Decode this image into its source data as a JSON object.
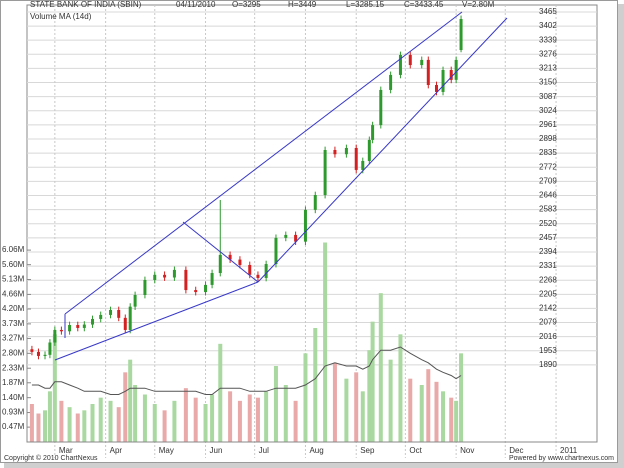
{
  "chart_data": {
    "type": "candlestick",
    "title": "STATE BANK OF INDIA (SBIN)",
    "header": [
      "04/11/2010",
      "O=3295",
      "H=3449",
      "L=3285.15",
      "C=3433.45",
      "V=2.80M"
    ],
    "volume_label": "Volume MA (14d)",
    "footer_left": "Copyright © 2010 ChartNexus",
    "footer_right": "Powered by www.chartnexus.com",
    "x": [
      46,
      50,
      54,
      57,
      60,
      64,
      69,
      74,
      78,
      83,
      88,
      94,
      99,
      103,
      106,
      109,
      115,
      121,
      127,
      133,
      140,
      146,
      152,
      156,
      161,
      167,
      173,
      179,
      184,
      189,
      195,
      201,
      207,
      213,
      219,
      225,
      231,
      238,
      244,
      248,
      252,
      254,
      259,
      265,
      271,
      277,
      284,
      288,
      293,
      297,
      302,
      305,
      308
    ],
    "open": [
      1960,
      1948,
      1930,
      1935,
      1990,
      2046,
      2040,
      2068,
      2055,
      2070,
      2095,
      2113,
      2135,
      2100,
      2046,
      2150,
      2202,
      2269,
      2292,
      2280,
      2314,
      2224,
      2215,
      2247,
      2300,
      2381,
      2360,
      2336,
      2292,
      2278,
      2340,
      2457,
      2470,
      2440,
      2582,
      2648,
      2849,
      2830,
      2858,
      2760,
      2800,
      2894,
      2960,
      3117,
      3184,
      3273,
      3228,
      3251,
      3139,
      3108,
      3206,
      3162,
      3295
    ],
    "high": [
      1975,
      1963,
      1950,
      2005,
      2061,
      2061,
      2083,
      2083,
      2085,
      2110,
      2128,
      2150,
      2150,
      2115,
      2165,
      2217,
      2284,
      2307,
      2307,
      2329,
      2329,
      2239,
      2262,
      2315,
      2626,
      2396,
      2375,
      2351,
      2307,
      2355,
      2472,
      2485,
      2485,
      2597,
      2663,
      2864,
      2864,
      2873,
      2873,
      2815,
      2909,
      2975,
      3132,
      3199,
      3288,
      3288,
      3266,
      3266,
      3154,
      3221,
      3221,
      3266,
      3449
    ],
    "low": [
      1933,
      1915,
      1915,
      1920,
      1975,
      2025,
      2025,
      2040,
      2040,
      2055,
      2080,
      2098,
      2085,
      2031,
      2031,
      2135,
      2187,
      2254,
      2265,
      2265,
      2209,
      2200,
      2200,
      2232,
      2285,
      2345,
      2321,
      2277,
      2263,
      2263,
      2325,
      2442,
      2425,
      2425,
      2567,
      2633,
      2815,
      2815,
      2745,
      2745,
      2785,
      2879,
      2945,
      3102,
      3169,
      3213,
      3213,
      3124,
      3093,
      3093,
      3147,
      3147,
      3285.15
    ],
    "close": [
      1948,
      1930,
      1935,
      1990,
      2046,
      2040,
      2068,
      2055,
      2070,
      2095,
      2113,
      2135,
      2100,
      2046,
      2150,
      2202,
      2269,
      2292,
      2280,
      2314,
      2224,
      2215,
      2247,
      2300,
      2381,
      2360,
      2336,
      2292,
      2278,
      2340,
      2457,
      2470,
      2440,
      2582,
      2648,
      2849,
      2830,
      2858,
      2760,
      2800,
      2894,
      2960,
      3117,
      3184,
      3273,
      3228,
      3251,
      3139,
      3108,
      3206,
      3162,
      3251,
      3433.45
    ],
    "volume": [
      1.2,
      0.9,
      1.0,
      1.6,
      3.4,
      1.3,
      1.1,
      0.9,
      1.0,
      1.2,
      1.4,
      1.3,
      1.1,
      2.2,
      2.6,
      1.8,
      1.5,
      1.2,
      1.0,
      1.3,
      1.7,
      1.4,
      1.2,
      1.5,
      3.1,
      1.6,
      1.3,
      1.5,
      1.4,
      1.6,
      2.4,
      1.8,
      1.3,
      2.8,
      3.6,
      6.3,
      2.5,
      2.0,
      2.2,
      1.6,
      2.9,
      3.8,
      4.7,
      2.6,
      3.4,
      2.0,
      1.8,
      2.3,
      1.9,
      1.6,
      1.4,
      1.3,
      2.8
    ],
    "volume_ma": [
      1.8,
      1.8,
      1.7,
      1.7,
      1.9,
      1.9,
      1.8,
      1.7,
      1.6,
      1.6,
      1.6,
      1.5,
      1.5,
      1.6,
      1.7,
      1.7,
      1.7,
      1.6,
      1.6,
      1.6,
      1.6,
      1.6,
      1.5,
      1.5,
      1.7,
      1.7,
      1.7,
      1.6,
      1.6,
      1.6,
      1.7,
      1.7,
      1.7,
      1.8,
      2.0,
      2.4,
      2.5,
      2.4,
      2.4,
      2.3,
      2.4,
      2.6,
      2.9,
      2.9,
      3.0,
      2.8,
      2.6,
      2.5,
      2.3,
      2.2,
      2.1,
      2.0,
      2.1
    ],
    "up_color": "#2e9a2e",
    "down_color": "#d42020",
    "volume_up_color": "#a9d9a0",
    "volume_down_color": "#e9a9a9",
    "ma_color": "#555555",
    "xlim": [
      43,
      391
    ],
    "xticks": [
      {
        "value": 60,
        "label": "Mar"
      },
      {
        "value": 91,
        "label": "Apr"
      },
      {
        "value": 121,
        "label": "May"
      },
      {
        "value": 152,
        "label": "Jun"
      },
      {
        "value": 182,
        "label": "Jul"
      },
      {
        "value": 213,
        "label": "Aug"
      },
      {
        "value": 244,
        "label": "Sep"
      },
      {
        "value": 274,
        "label": "Oct"
      },
      {
        "value": 305,
        "label": "Nov"
      },
      {
        "value": 335,
        "label": "Dec"
      },
      {
        "value": 366,
        "label": "2011"
      }
    ],
    "ylim": [
      1546,
      3496
    ],
    "yticks": [
      3465,
      3402,
      3339,
      3276,
      3213,
      3150,
      3087,
      3024,
      2961,
      2898,
      2835,
      2772,
      2709,
      2646,
      2583,
      2520,
      2457,
      2394,
      2331,
      2268,
      2205,
      2142,
      2079,
      2016,
      1953,
      1890
    ],
    "y2lim": [
      0,
      13.8
    ],
    "y2ticks": [
      {
        "value": 6.06,
        "label": "6.06M"
      },
      {
        "value": 5.6,
        "label": "5.60M"
      },
      {
        "value": 5.13,
        "label": "5.13M"
      },
      {
        "value": 4.66,
        "label": "4.66M"
      },
      {
        "value": 4.2,
        "label": "4.20M"
      },
      {
        "value": 3.73,
        "label": "3.73M"
      },
      {
        "value": 3.27,
        "label": "3.27M"
      },
      {
        "value": 2.8,
        "label": "2.80M"
      },
      {
        "value": 2.33,
        "label": "2.33M"
      },
      {
        "value": 1.87,
        "label": "1.87M"
      },
      {
        "value": 1.4,
        "label": "1.40M"
      },
      {
        "value": 0.93,
        "label": "0.93M"
      },
      {
        "value": 0.47,
        "label": "0.47M"
      }
    ],
    "grid": true
  }
}
